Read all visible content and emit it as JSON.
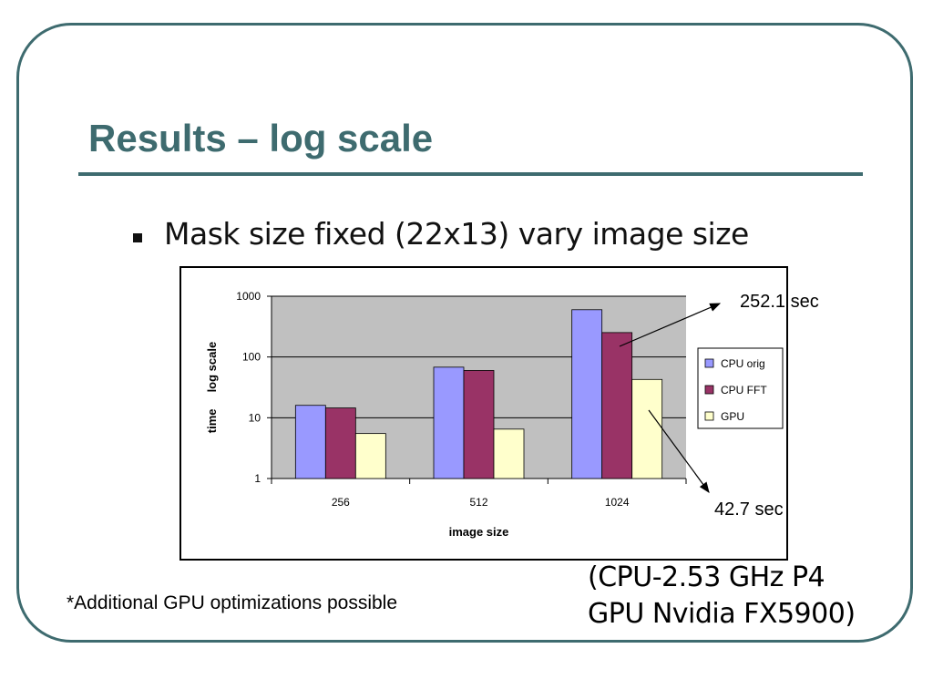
{
  "slide": {
    "title": "Results – log scale",
    "bullet": "Mask size fixed (22x13) vary image size",
    "footnote": "*Additional GPU optimizations possible",
    "spec_line1": "(CPU-2.53 GHz P4",
    "spec_line2": "GPU Nvidia FX5900)",
    "callout_top": "252.1 sec",
    "callout_bottom": "42.7 sec"
  },
  "colors": {
    "theme": "#3e6b6f",
    "plot_bg": "#c0c0c0",
    "cpu_orig": "#9999ff",
    "cpu_fft": "#993366",
    "gpu": "#ffffcc"
  },
  "chart_data": {
    "type": "bar",
    "categories": [
      "256",
      "512",
      "1024"
    ],
    "series": [
      {
        "name": "CPU orig",
        "values": [
          16,
          68,
          600
        ]
      },
      {
        "name": "CPU FFT",
        "values": [
          14.5,
          60,
          252.1
        ]
      },
      {
        "name": "GPU",
        "values": [
          5.5,
          6.5,
          42.7
        ]
      }
    ],
    "y_scale": "log",
    "ylim": [
      1,
      1000
    ],
    "yticks": [
      "1",
      "10",
      "100",
      "1000"
    ],
    "xlabel": "image size",
    "ylabel": "time     log scale",
    "legend": "right",
    "grid": "horizontal"
  }
}
